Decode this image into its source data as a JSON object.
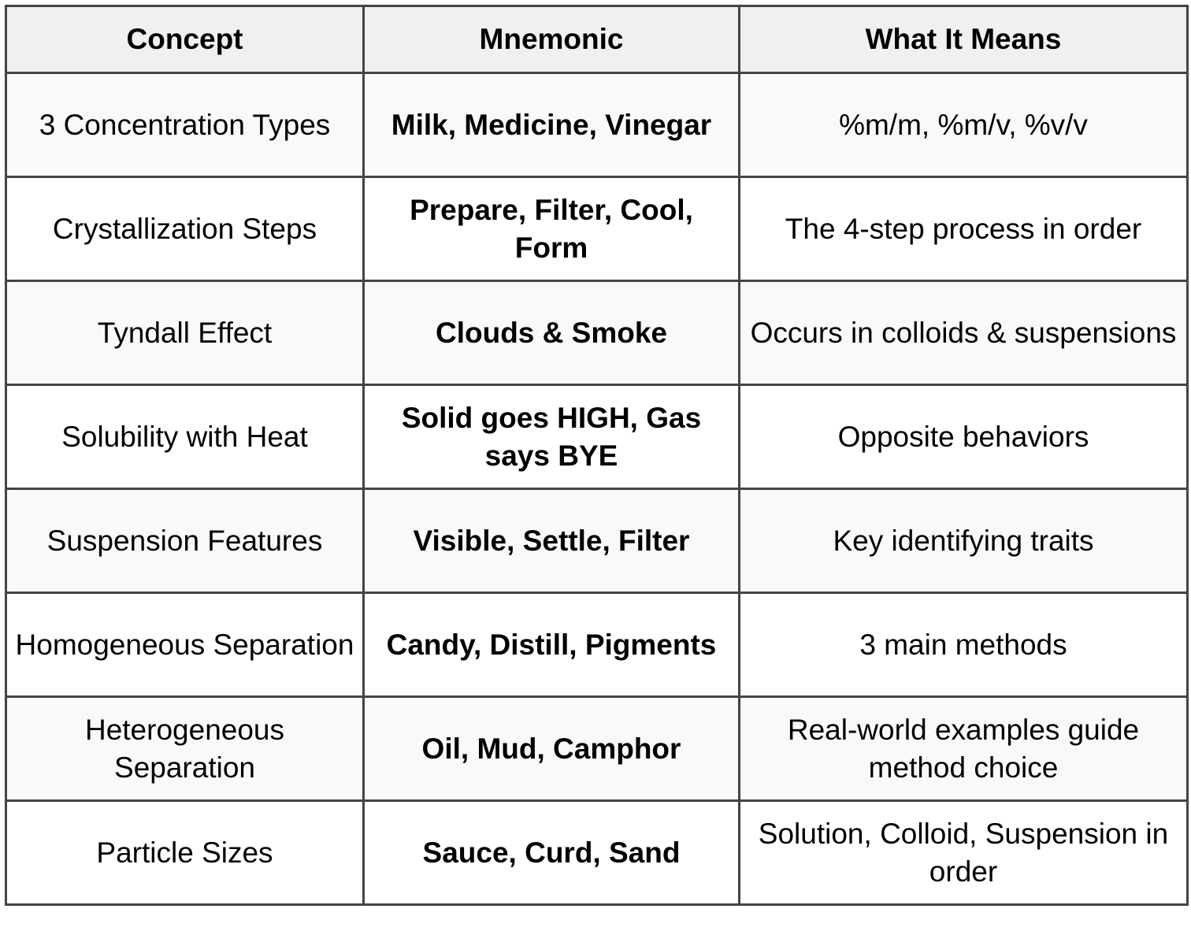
{
  "headers": [
    "Concept",
    "Mnemonic",
    "What It Means"
  ],
  "rows": [
    {
      "concept": "3 Concentration Types",
      "mnemonic": "Milk, Medicine, Vinegar",
      "meaning": "%m/m, %m/v, %v/v"
    },
    {
      "concept": "Crystallization Steps",
      "mnemonic": "Prepare, Filter, Cool, Form",
      "meaning": "The 4-step process in order"
    },
    {
      "concept": "Tyndall Effect",
      "mnemonic": "Clouds & Smoke",
      "meaning": "Occurs in colloids & suspensions"
    },
    {
      "concept": "Solubility with Heat",
      "mnemonic": "Solid goes HIGH, Gas says BYE",
      "meaning": "Opposite behaviors"
    },
    {
      "concept": "Suspension Features",
      "mnemonic": "Visible, Settle, Filter",
      "meaning": "Key identifying traits"
    },
    {
      "concept": "Homogeneous Separation",
      "mnemonic": "Candy, Distill, Pigments",
      "meaning": "3 main methods"
    },
    {
      "concept": "Heterogeneous Separation",
      "mnemonic": "Oil, Mud, Camphor",
      "meaning": "Real-world examples guide method choice"
    },
    {
      "concept": "Particle Sizes",
      "mnemonic": "Sauce, Curd, Sand",
      "meaning": "Solution, Colloid, Suspension in order"
    }
  ]
}
